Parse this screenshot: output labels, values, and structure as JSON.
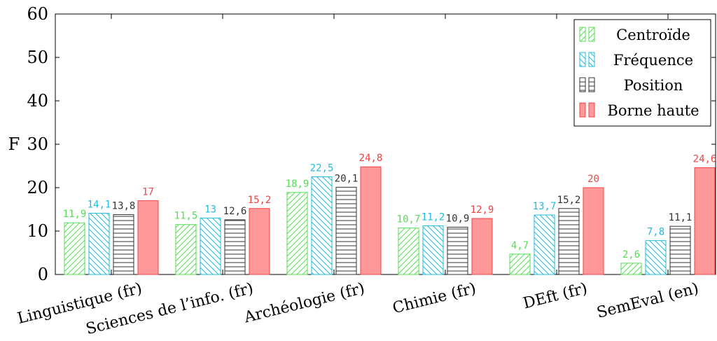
{
  "chart_data": {
    "type": "bar",
    "ylabel": "F",
    "ylim": [
      0,
      60
    ],
    "yticks": [
      0,
      10,
      20,
      30,
      40,
      50,
      60
    ],
    "grid": false,
    "legend_position": "top-right",
    "categories": [
      "Linguistique (fr)",
      "Sciences de l’info. (fr)",
      "Archéologie (fr)",
      "Chimie (fr)",
      "DEft (fr)",
      "SemEval (en)"
    ],
    "series": [
      {
        "name": "Centroïde",
        "color": "#55dd55",
        "pattern": "north-east-lines",
        "values": [
          11.9,
          11.5,
          18.9,
          10.7,
          4.7,
          2.6
        ],
        "labels": [
          "11,9",
          "11,5",
          "18,9",
          "10,7",
          "4,7",
          "2,6"
        ]
      },
      {
        "name": "Fréquence",
        "color": "#22bbdd",
        "pattern": "north-west-lines",
        "values": [
          14.1,
          13,
          22.5,
          11.2,
          13.7,
          7.8
        ],
        "labels": [
          "14,1",
          "13",
          "22,5",
          "11,2",
          "13,7",
          "7,8"
        ]
      },
      {
        "name": "Position",
        "color": "#333333",
        "pattern": "horizontal-lines",
        "values": [
          13.8,
          12.6,
          20.1,
          10.9,
          15.2,
          11.1
        ],
        "labels": [
          "13,8",
          "12,6",
          "20,1",
          "10,9",
          "15,2",
          "11,1"
        ]
      },
      {
        "name": "Borne haute",
        "color": "#ff9999",
        "stroke": "#ee4444",
        "label_color": "#ee4444",
        "pattern": "solid",
        "values": [
          17,
          15.2,
          24.8,
          12.9,
          20,
          24.6
        ],
        "labels": [
          "17",
          "15,2",
          "24,8",
          "12,9",
          "20",
          "24,6"
        ]
      }
    ]
  }
}
